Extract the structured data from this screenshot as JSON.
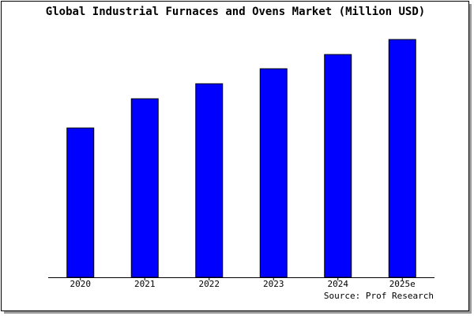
{
  "chart_data": {
    "type": "bar",
    "title": "Global Industrial Furnaces and Ovens Market (Million USD)",
    "categories": [
      "2020",
      "2021",
      "2022",
      "2023",
      "2024",
      "2025e"
    ],
    "values": [
      189,
      226,
      245,
      264,
      282,
      301
    ],
    "color": "#0000ff",
    "ylim": [
      0,
      306
    ],
    "source": "Source: Prof Research"
  }
}
